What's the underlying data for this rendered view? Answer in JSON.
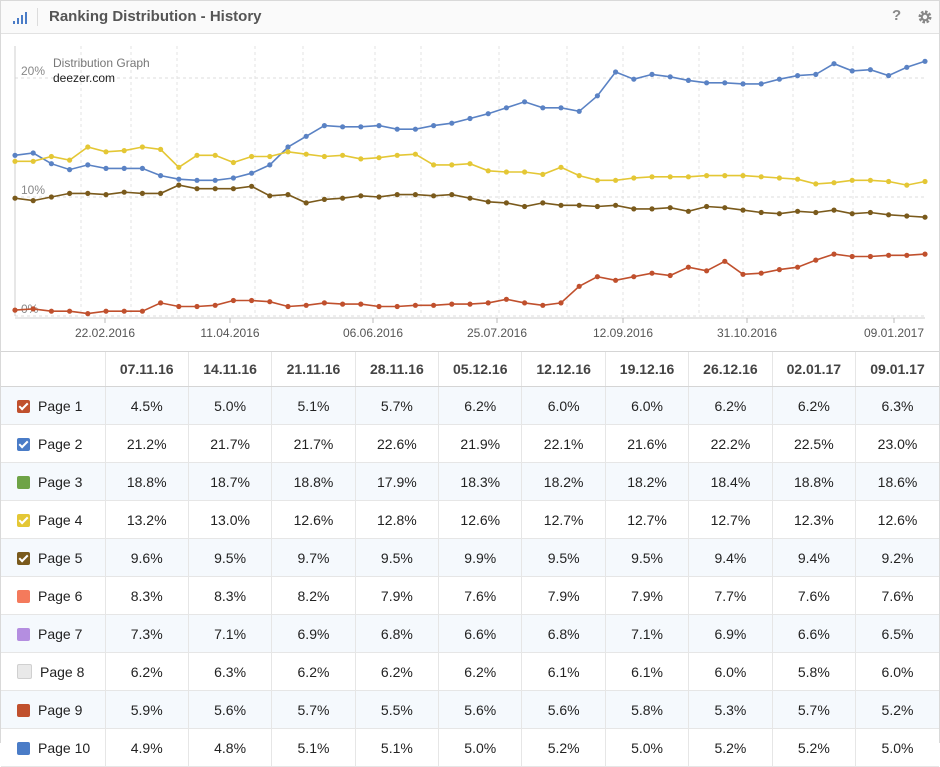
{
  "header": {
    "title": "Ranking Distribution - History",
    "help": "?",
    "icons": [
      "bar-chart-icon",
      "gear-icon"
    ]
  },
  "chart": {
    "caption": "Distribution Graph",
    "domain": "deezer.com"
  },
  "chart_data": {
    "type": "line",
    "title": "Distribution Graph",
    "subtitle": "deezer.com",
    "xlabel": "",
    "ylabel": "",
    "ylim": [
      0,
      23
    ],
    "yticks": [
      "0%",
      "10%",
      "20%"
    ],
    "xticks": [
      "22.02.2016",
      "11.04.2016",
      "06.06.2016",
      "25.07.2016",
      "12.09.2016",
      "31.10.2016",
      "09.01.2017"
    ],
    "grid": true,
    "legend": "none",
    "points": 51,
    "series": [
      {
        "color": "#5a82c4",
        "values": [
          13.5,
          13.7,
          12.8,
          12.3,
          12.7,
          12.4,
          12.4,
          12.4,
          11.8,
          11.5,
          11.4,
          11.4,
          11.6,
          12.0,
          12.7,
          14.2,
          15.1,
          16.0,
          15.9,
          15.9,
          16.0,
          15.7,
          15.7,
          16.0,
          16.2,
          16.6,
          17.0,
          17.5,
          18.0,
          17.5,
          17.5,
          17.2,
          18.5,
          20.5,
          19.9,
          20.3,
          20.1,
          19.8,
          19.6,
          19.6,
          19.5,
          19.5,
          19.9,
          20.2,
          20.3,
          21.2,
          20.6,
          20.7,
          20.2,
          20.9,
          21.4
        ]
      },
      {
        "color": "#e4c735",
        "values": [
          13.0,
          13.0,
          13.4,
          13.1,
          14.2,
          13.8,
          13.9,
          14.2,
          14.0,
          12.5,
          13.5,
          13.5,
          12.9,
          13.4,
          13.4,
          13.8,
          13.6,
          13.4,
          13.5,
          13.2,
          13.3,
          13.5,
          13.6,
          12.7,
          12.7,
          12.8,
          12.2,
          12.1,
          12.1,
          11.9,
          12.5,
          11.8,
          11.4,
          11.4,
          11.6,
          11.7,
          11.7,
          11.7,
          11.8,
          11.8,
          11.8,
          11.7,
          11.6,
          11.5,
          11.1,
          11.2,
          11.4,
          11.4,
          11.3,
          11.0,
          11.3
        ]
      },
      {
        "color": "#7a5a1c",
        "values": [
          9.9,
          9.7,
          10.0,
          10.3,
          10.3,
          10.2,
          10.4,
          10.3,
          10.3,
          11.0,
          10.7,
          10.7,
          10.7,
          10.9,
          10.1,
          10.2,
          9.5,
          9.8,
          9.9,
          10.1,
          10.0,
          10.2,
          10.2,
          10.1,
          10.2,
          9.9,
          9.6,
          9.5,
          9.2,
          9.5,
          9.3,
          9.3,
          9.2,
          9.3,
          9.0,
          9.0,
          9.1,
          8.8,
          9.2,
          9.1,
          8.9,
          8.7,
          8.6,
          8.8,
          8.7,
          8.9,
          8.6,
          8.7,
          8.5,
          8.4,
          8.3
        ]
      },
      {
        "color": "#c0502d",
        "values": [
          0.5,
          0.6,
          0.4,
          0.4,
          0.2,
          0.4,
          0.4,
          0.4,
          1.1,
          0.8,
          0.8,
          0.9,
          1.3,
          1.3,
          1.2,
          0.8,
          0.9,
          1.1,
          1.0,
          1.0,
          0.8,
          0.8,
          0.9,
          0.9,
          1.0,
          1.0,
          1.1,
          1.4,
          1.1,
          0.9,
          1.1,
          2.5,
          3.3,
          3.0,
          3.3,
          3.6,
          3.4,
          4.1,
          3.8,
          4.6,
          3.5,
          3.6,
          3.9,
          4.1,
          4.7,
          5.2,
          5.0,
          5.0,
          5.1,
          5.1,
          5.2
        ]
      }
    ]
  },
  "table": {
    "columns": [
      "07.11.16",
      "14.11.16",
      "21.11.16",
      "28.11.16",
      "05.12.16",
      "12.12.16",
      "19.12.16",
      "26.12.16",
      "02.01.17",
      "09.01.17"
    ],
    "rows": [
      {
        "label": "Page 1",
        "color": "#c0502d",
        "checked": true,
        "values": [
          "4.5%",
          "5.0%",
          "5.1%",
          "5.7%",
          "6.2%",
          "6.0%",
          "6.0%",
          "6.2%",
          "6.2%",
          "6.3%"
        ]
      },
      {
        "label": "Page 2",
        "color": "#4a7cc7",
        "checked": true,
        "values": [
          "21.2%",
          "21.7%",
          "21.7%",
          "22.6%",
          "21.9%",
          "22.1%",
          "21.6%",
          "22.2%",
          "22.5%",
          "23.0%"
        ]
      },
      {
        "label": "Page 3",
        "color": "#6ea346",
        "checked": false,
        "values": [
          "18.8%",
          "18.7%",
          "18.8%",
          "17.9%",
          "18.3%",
          "18.2%",
          "18.2%",
          "18.4%",
          "18.8%",
          "18.6%"
        ]
      },
      {
        "label": "Page 4",
        "color": "#e4c735",
        "checked": true,
        "values": [
          "13.2%",
          "13.0%",
          "12.6%",
          "12.8%",
          "12.6%",
          "12.7%",
          "12.7%",
          "12.7%",
          "12.3%",
          "12.6%"
        ]
      },
      {
        "label": "Page 5",
        "color": "#7a5a1c",
        "checked": true,
        "values": [
          "9.6%",
          "9.5%",
          "9.7%",
          "9.5%",
          "9.9%",
          "9.5%",
          "9.5%",
          "9.4%",
          "9.4%",
          "9.2%"
        ]
      },
      {
        "label": "Page 6",
        "color": "#f47a5c",
        "checked": false,
        "values": [
          "8.3%",
          "8.3%",
          "8.2%",
          "7.9%",
          "7.6%",
          "7.9%",
          "7.9%",
          "7.7%",
          "7.6%",
          "7.6%"
        ]
      },
      {
        "label": "Page 7",
        "color": "#b48ee0",
        "checked": false,
        "values": [
          "7.3%",
          "7.1%",
          "6.9%",
          "6.8%",
          "6.6%",
          "6.8%",
          "7.1%",
          "6.9%",
          "6.6%",
          "6.5%"
        ]
      },
      {
        "label": "Page 8",
        "color": "#e9e9e9",
        "checked": false,
        "values": [
          "6.2%",
          "6.3%",
          "6.2%",
          "6.2%",
          "6.2%",
          "6.1%",
          "6.1%",
          "6.0%",
          "5.8%",
          "6.0%"
        ]
      },
      {
        "label": "Page 9",
        "color": "#c0502d",
        "checked": false,
        "values": [
          "5.9%",
          "5.6%",
          "5.7%",
          "5.5%",
          "5.6%",
          "5.6%",
          "5.8%",
          "5.3%",
          "5.7%",
          "5.2%"
        ]
      },
      {
        "label": "Page 10",
        "color": "#4a7cc7",
        "checked": false,
        "values": [
          "4.9%",
          "4.8%",
          "5.1%",
          "5.1%",
          "5.0%",
          "5.2%",
          "5.0%",
          "5.2%",
          "5.2%",
          "5.0%"
        ]
      }
    ]
  }
}
